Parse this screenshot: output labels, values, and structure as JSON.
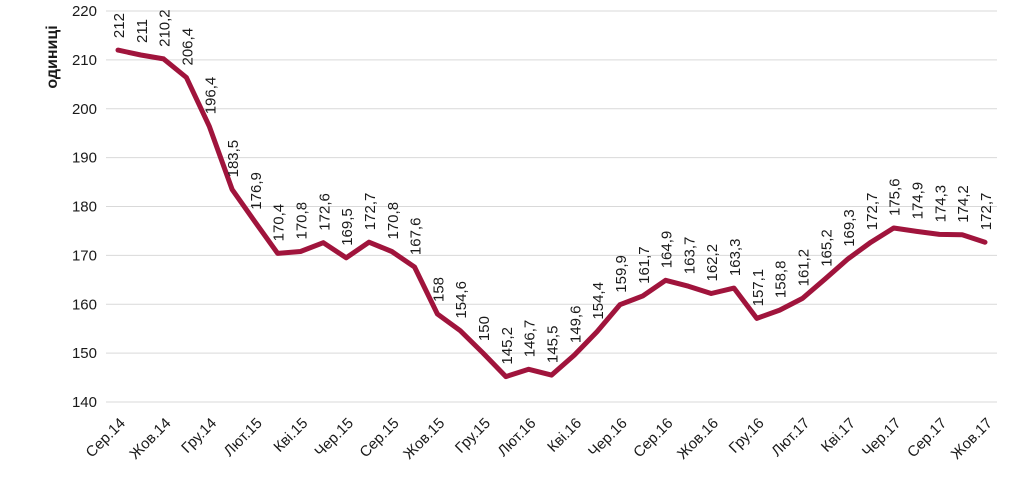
{
  "chart_data": {
    "type": "line",
    "title": "",
    "ylabel": "одиниці",
    "xlabel": "",
    "ylim": [
      140,
      220
    ],
    "y_tick_step": 10,
    "y_tick_labels": [
      "220",
      "210",
      "200",
      "190",
      "180",
      "170",
      "160",
      "150",
      "140"
    ],
    "x_tick_every": 2,
    "x_tick_labels": [
      "Сер.14",
      "Жов.14",
      "Гру.14",
      "Лют.15",
      "Кві.15",
      "Чер.15",
      "Сер.15",
      "Жов.15",
      "Гру.15",
      "Лют.16",
      "Кві.16",
      "Чер.16",
      "Сер.16",
      "Жов.16",
      "Гру.16",
      "Лют.17",
      "Кві.17",
      "Чер.17",
      "Сер.17",
      "Жов.17"
    ],
    "values": [
      212,
      211,
      210.2,
      206.4,
      196.4,
      183.5,
      176.9,
      170.4,
      170.8,
      172.6,
      169.5,
      172.7,
      170.8,
      167.6,
      158,
      154.6,
      150,
      145.2,
      146.7,
      145.5,
      149.6,
      154.4,
      159.9,
      161.7,
      164.9,
      163.7,
      162.2,
      163.3,
      157.1,
      158.8,
      161.2,
      165.2,
      169.3,
      172.7,
      175.6,
      174.9,
      174.3,
      174.2,
      172.7
    ],
    "point_labels": [
      "212",
      "211",
      "210,2",
      "206,4",
      "196,4",
      "183,5",
      "176,9",
      "170,4",
      "170,8",
      "172,6",
      "169,5",
      "172,7",
      "170,8",
      "167,6",
      "158",
      "154,6",
      "150",
      "145,2",
      "146,7",
      "145,5",
      "149,6",
      "154,4",
      "159,9",
      "161,7",
      "164,9",
      "163,7",
      "162,2",
      "163,3",
      "157,1",
      "158,8",
      "161,2",
      "165,2",
      "169,3",
      "172,7",
      "175,6",
      "174,9",
      "174,3",
      "174,2",
      "172,7"
    ],
    "legend": null,
    "grid": "horizontal"
  },
  "colors": {
    "line": "#A0143C",
    "grid": "#D9D9D9",
    "text": "#1A1A1A",
    "background": "#FFFFFF"
  }
}
